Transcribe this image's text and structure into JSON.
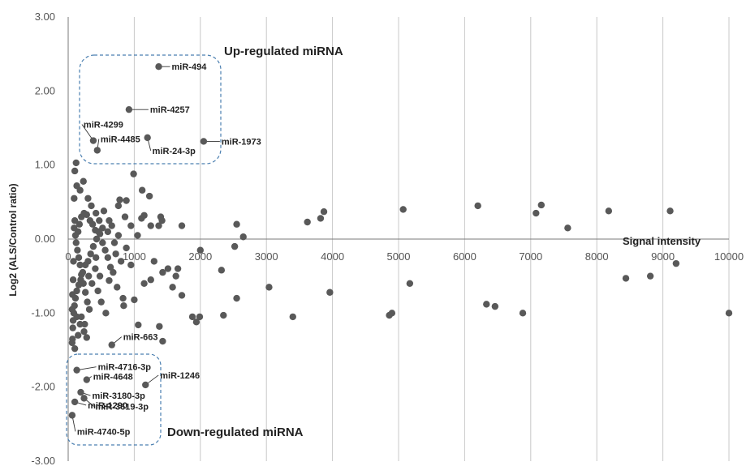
{
  "chart_data": {
    "type": "scatter",
    "title": "",
    "xlabel": "Signal intensity",
    "ylabel": "Log2 (ALS/Control ratio)",
    "xlim": [
      0,
      10000
    ],
    "ylim": [
      -3,
      3
    ],
    "x_ticks": [
      "0",
      "1000",
      "2000",
      "3000",
      "4000",
      "5000",
      "6000",
      "7000",
      "8000",
      "9000",
      "10000"
    ],
    "y_ticks": [
      "3.00",
      "2.00",
      "1.00",
      "0.00",
      "-1.00",
      "-2.00",
      "-3.00"
    ],
    "grid": "vertical",
    "region_labels": {
      "up": "Up-regulated miRNA",
      "down": "Down-regulated miRNA"
    },
    "labeled_points": [
      {
        "name": "miR-494",
        "x": 1370,
        "y": 2.33
      },
      {
        "name": "miR-4257",
        "x": 920,
        "y": 1.75
      },
      {
        "name": "miR-4299",
        "x": 380,
        "y": 1.33
      },
      {
        "name": "miR-4485",
        "x": 440,
        "y": 1.2
      },
      {
        "name": "miR-24-3p",
        "x": 1200,
        "y": 1.37
      },
      {
        "name": "miR-1973",
        "x": 2050,
        "y": 1.32
      },
      {
        "name": "miR-663",
        "x": 660,
        "y": -1.43
      },
      {
        "name": "miR-4716-3p",
        "x": 130,
        "y": -1.77
      },
      {
        "name": "miR-4648",
        "x": 280,
        "y": -1.9
      },
      {
        "name": "miR-3180-3p",
        "x": 190,
        "y": -2.07
      },
      {
        "name": "miR-3619-3p",
        "x": 240,
        "y": -2.15
      },
      {
        "name": "miR-1246",
        "x": 1170,
        "y": -1.97
      },
      {
        "name": "miR-1290",
        "x": 100,
        "y": -2.2
      },
      {
        "name": "miR-4740-5p",
        "x": 60,
        "y": -2.38
      }
    ],
    "points": [
      [
        120,
        1.03
      ],
      [
        100,
        0.92
      ],
      [
        130,
        0.72
      ],
      [
        230,
        0.78
      ],
      [
        180,
        0.66
      ],
      [
        300,
        0.55
      ],
      [
        90,
        0.55
      ],
      [
        780,
        0.53
      ],
      [
        880,
        0.52
      ],
      [
        760,
        0.45
      ],
      [
        990,
        0.88
      ],
      [
        1120,
        0.66
      ],
      [
        1230,
        0.58
      ],
      [
        1400,
        0.3
      ],
      [
        1420,
        0.25
      ],
      [
        1150,
        0.32
      ],
      [
        1110,
        0.28
      ],
      [
        1250,
        0.18
      ],
      [
        1370,
        0.18
      ],
      [
        1720,
        0.18
      ],
      [
        2000,
        -0.15
      ],
      [
        2550,
        0.2
      ],
      [
        2520,
        -0.1
      ],
      [
        2650,
        0.03
      ],
      [
        3620,
        0.23
      ],
      [
        3820,
        0.28
      ],
      [
        3870,
        0.37
      ],
      [
        5070,
        0.4
      ],
      [
        6200,
        0.45
      ],
      [
        7080,
        0.35
      ],
      [
        7160,
        0.46
      ],
      [
        7560,
        0.15
      ],
      [
        8180,
        0.38
      ],
      [
        9110,
        0.38
      ],
      [
        9200,
        -0.33
      ],
      [
        8440,
        -0.53
      ],
      [
        8810,
        -0.5
      ],
      [
        10000,
        -1.0
      ],
      [
        6880,
        -1.0
      ],
      [
        6330,
        -0.88
      ],
      [
        6460,
        -0.91
      ],
      [
        5170,
        -0.6
      ],
      [
        4860,
        -1.03
      ],
      [
        4900,
        -1.0
      ],
      [
        3960,
        -0.72
      ],
      [
        3400,
        -1.05
      ],
      [
        3040,
        -0.65
      ],
      [
        2550,
        -0.8
      ],
      [
        2350,
        -1.03
      ],
      [
        2320,
        -0.42
      ],
      [
        1940,
        -1.12
      ],
      [
        1880,
        -1.05
      ],
      [
        1990,
        -1.05
      ],
      [
        1720,
        -0.76
      ],
      [
        1630,
        -0.5
      ],
      [
        1580,
        -0.65
      ],
      [
        1510,
        -0.4
      ],
      [
        1430,
        -0.45
      ],
      [
        1660,
        -0.4
      ],
      [
        1250,
        -0.55
      ],
      [
        1380,
        -1.18
      ],
      [
        1430,
        -1.38
      ],
      [
        1060,
        -1.16
      ],
      [
        1000,
        -0.82
      ],
      [
        830,
        -0.8
      ],
      [
        840,
        -0.9
      ],
      [
        880,
        -0.12
      ],
      [
        800,
        -0.3
      ],
      [
        620,
        -0.56
      ],
      [
        570,
        -1.0
      ],
      [
        240,
        -1.25
      ],
      [
        280,
        -1.33
      ],
      [
        150,
        -1.3
      ],
      [
        100,
        -1.48
      ],
      [
        860,
        0.3
      ],
      [
        620,
        0.25
      ],
      [
        520,
        0.15
      ],
      [
        480,
        0.07
      ],
      [
        430,
        0.0
      ],
      [
        380,
        -0.1
      ],
      [
        340,
        -0.2
      ],
      [
        300,
        -0.3
      ],
      [
        260,
        -0.35
      ],
      [
        220,
        -0.45
      ],
      [
        190,
        -0.55
      ],
      [
        160,
        -0.62
      ],
      [
        130,
        -0.7
      ],
      [
        110,
        -0.8
      ],
      [
        95,
        -0.9
      ],
      [
        85,
        -1.0
      ],
      [
        75,
        -1.1
      ],
      [
        70,
        -1.2
      ],
      [
        65,
        -1.35
      ],
      [
        60,
        -1.4
      ],
      [
        150,
        0.1
      ],
      [
        170,
        0.2
      ],
      [
        200,
        0.3
      ],
      [
        240,
        0.35
      ],
      [
        280,
        0.33
      ],
      [
        330,
        0.25
      ],
      [
        370,
        0.2
      ],
      [
        410,
        0.12
      ],
      [
        460,
        0.1
      ],
      [
        520,
        -0.05
      ],
      [
        560,
        -0.15
      ],
      [
        600,
        -0.25
      ],
      [
        640,
        -0.38
      ],
      [
        680,
        -0.45
      ],
      [
        720,
        -0.2
      ],
      [
        760,
        0.05
      ],
      [
        110,
        0.05
      ],
      [
        120,
        -0.05
      ],
      [
        140,
        -0.15
      ],
      [
        160,
        -0.25
      ],
      [
        180,
        -0.35
      ],
      [
        200,
        -0.48
      ],
      [
        230,
        -0.6
      ],
      [
        260,
        -0.72
      ],
      [
        290,
        -0.85
      ],
      [
        320,
        -0.95
      ],
      [
        100,
        0.25
      ],
      [
        90,
        0.15
      ],
      [
        80,
        -0.3
      ],
      [
        75,
        -0.55
      ],
      [
        65,
        -0.75
      ],
      [
        60,
        -0.95
      ],
      [
        350,
        0.45
      ],
      [
        420,
        0.35
      ],
      [
        470,
        0.25
      ],
      [
        540,
        0.38
      ],
      [
        600,
        0.1
      ],
      [
        660,
        0.18
      ],
      [
        700,
        -0.05
      ],
      [
        740,
        -0.65
      ],
      [
        200,
        -1.05
      ],
      [
        250,
        -1.15
      ],
      [
        310,
        -0.5
      ],
      [
        360,
        -0.6
      ],
      [
        410,
        -0.4
      ],
      [
        450,
        -0.7
      ],
      [
        500,
        -0.85
      ],
      [
        130,
        -1.05
      ],
      [
        180,
        -1.15
      ],
      [
        950,
        0.18
      ],
      [
        1050,
        0.05
      ],
      [
        950,
        -0.35
      ],
      [
        1150,
        -0.6
      ],
      [
        1300,
        -0.3
      ],
      [
        420,
        -0.25
      ],
      [
        480,
        -0.5
      ]
    ]
  }
}
